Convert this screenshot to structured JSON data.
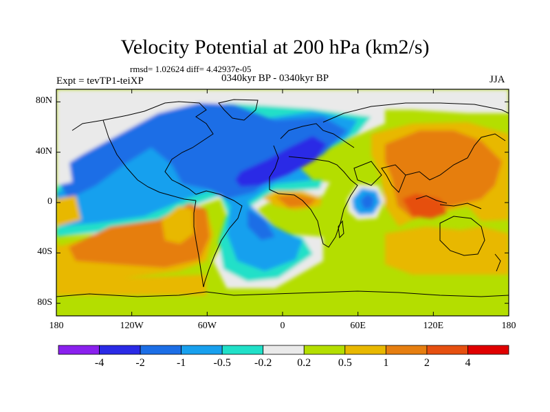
{
  "title": "Velocity Potential at 200 hPa (km2/s)",
  "stats_line": "rmsd= 1.02624  diff= 4.42937e-05",
  "experiment_label": "Expt = tevTP1-teiXP",
  "period_label": "0340kyr BP - 0340kyr BP",
  "season_label": "JJA",
  "map": {
    "projection": "cylindrical-equidistant",
    "lon_range": [
      -180,
      180
    ],
    "lat_range": [
      -90,
      90
    ],
    "lat_ticks": [
      {
        "value": 80,
        "label": "80N"
      },
      {
        "value": 40,
        "label": "40N"
      },
      {
        "value": 0,
        "label": "0"
      },
      {
        "value": -40,
        "label": "40S"
      },
      {
        "value": -80,
        "label": "80S"
      }
    ],
    "lon_ticks": [
      {
        "value": -180,
        "label": "180"
      },
      {
        "value": -120,
        "label": "120W"
      },
      {
        "value": -60,
        "label": "60W"
      },
      {
        "value": 0,
        "label": "0"
      },
      {
        "value": 60,
        "label": "60E"
      },
      {
        "value": 120,
        "label": "120E"
      },
      {
        "value": 180,
        "label": "180"
      }
    ]
  },
  "colorbar": {
    "colors": [
      "#8a20ee",
      "#2a2ae6",
      "#1c6ee6",
      "#18a0ee",
      "#20e0c8",
      "#eaeaea",
      "#b4de00",
      "#e8b800",
      "#e67e10",
      "#e65010",
      "#e00000"
    ],
    "labels": [
      "-4",
      "-2",
      "-1",
      "-0.5",
      "-0.2",
      "0.2",
      "0.5",
      "1",
      "2",
      "4"
    ]
  }
}
